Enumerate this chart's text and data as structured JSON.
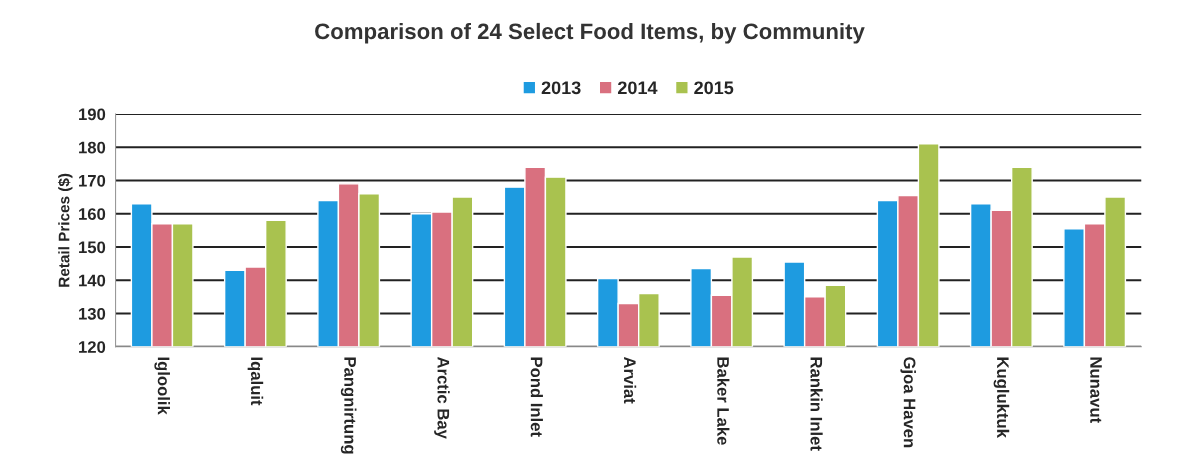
{
  "chart_data": {
    "type": "bar",
    "title": "Comparison of 24 Select Food Items, by Community",
    "ylabel": "Retail Prices ($)",
    "categories": [
      "Igloolik",
      "Iqaluit",
      "Pangnirtung",
      "Arctic Bay",
      "Pond Inlet",
      "Arviat",
      "Baker Lake",
      "Rankin Inlet",
      "Gjoa Haven",
      "Kugluktuk",
      "Nunavut"
    ],
    "series": [
      {
        "name": "2013",
        "color": "#1e9be0",
        "values": [
          163,
          143,
          164,
          160,
          168,
          140.5,
          143.5,
          145.5,
          164,
          163,
          155.5
        ]
      },
      {
        "name": "2014",
        "color": "#d9707f",
        "values": [
          157,
          144,
          169,
          160.5,
          174,
          133,
          135.5,
          135,
          165.5,
          161,
          157
        ]
      },
      {
        "name": "2015",
        "color": "#a9c24f",
        "values": [
          157,
          158,
          166,
          165,
          171,
          136,
          147,
          138.5,
          181,
          174,
          165
        ]
      }
    ],
    "ylim": [
      120,
      190
    ],
    "yticks": [
      120,
      130,
      140,
      150,
      160,
      170,
      180,
      190
    ],
    "grid": "y",
    "legend": "top"
  }
}
